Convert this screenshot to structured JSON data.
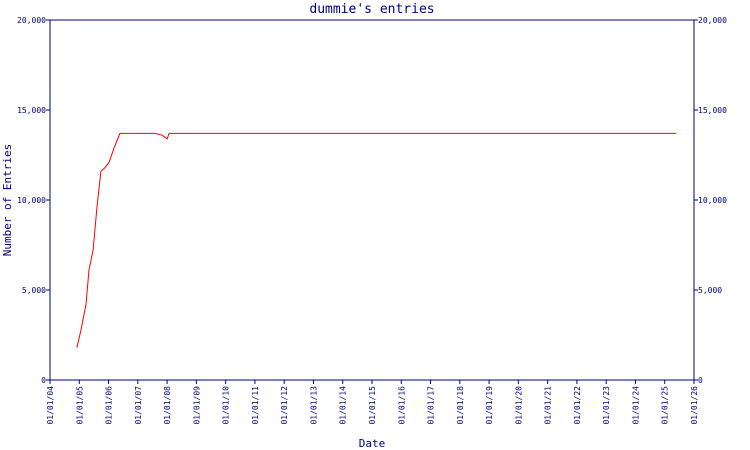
{
  "chart_data": {
    "type": "line",
    "title": "dummie's entries",
    "x_label": "Date",
    "y_label": "Number of Entries",
    "xlim": [
      2004,
      2026
    ],
    "xticks": [
      {
        "value": 2004,
        "label": "01/01/04"
      },
      {
        "value": 2005,
        "label": "01/01/05"
      },
      {
        "value": 2006,
        "label": "01/01/06"
      },
      {
        "value": 2007,
        "label": "01/01/07"
      },
      {
        "value": 2008,
        "label": "01/01/08"
      },
      {
        "value": 2009,
        "label": "01/01/09"
      },
      {
        "value": 2010,
        "label": "01/01/10"
      },
      {
        "value": 2011,
        "label": "01/01/11"
      },
      {
        "value": 2012,
        "label": "01/01/12"
      },
      {
        "value": 2013,
        "label": "01/01/13"
      },
      {
        "value": 2014,
        "label": "01/01/14"
      },
      {
        "value": 2015,
        "label": "01/01/15"
      },
      {
        "value": 2016,
        "label": "01/01/16"
      },
      {
        "value": 2017,
        "label": "01/01/17"
      },
      {
        "value": 2018,
        "label": "01/01/18"
      },
      {
        "value": 2019,
        "label": "01/01/19"
      },
      {
        "value": 2020,
        "label": "01/01/20"
      },
      {
        "value": 2021,
        "label": "01/01/21"
      },
      {
        "value": 2022,
        "label": "01/01/22"
      },
      {
        "value": 2023,
        "label": "01/01/23"
      },
      {
        "value": 2024,
        "label": "01/01/24"
      },
      {
        "value": 2025,
        "label": "01/01/25"
      },
      {
        "value": 2026,
        "label": "01/01/26"
      }
    ],
    "ylim": [
      0,
      20000
    ],
    "yticks": [
      0,
      {
        "value": 5000,
        "label": "5,000"
      },
      {
        "value": 10000,
        "label": "10,000"
      },
      {
        "value": 15000,
        "label": "15,000"
      },
      {
        "value": 20000,
        "label": "20,000"
      }
    ],
    "axis_color": "#000080",
    "series": [
      {
        "color": "#ff0000",
        "x": [
          2004.92,
          2005.06,
          2005.23,
          2005.33,
          2005.47,
          2005.61,
          2005.74,
          2005.88,
          2006.02,
          2006.19,
          2006.39,
          2007.59,
          2007.83,
          2008.0,
          2008.07,
          2025.39
        ],
        "values": [
          1800,
          2800,
          4200,
          6100,
          7200,
          9700,
          11600,
          11800,
          12100,
          12900,
          13700,
          13700,
          13600,
          13400,
          13700,
          13700
        ]
      }
    ]
  }
}
